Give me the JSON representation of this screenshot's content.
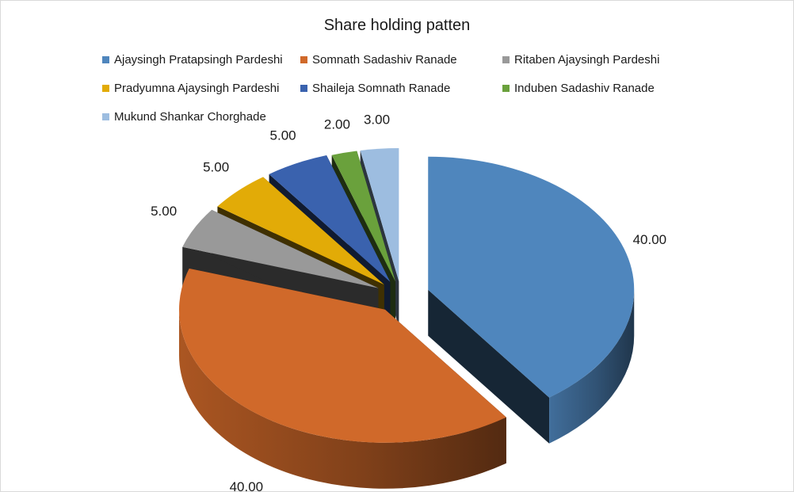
{
  "chart_data": {
    "type": "pie",
    "title": "Share holding patten",
    "legend_position": "top",
    "categories": [
      "Ajaysingh Pratapsingh Pardeshi",
      "Somnath Sadashiv Ranade",
      "Ritaben Ajaysingh Pardeshi",
      "Pradyumna Ajaysingh Pardeshi",
      "Shaileja Somnath Ranade",
      "Induben Sadashiv Ranade",
      "Mukund Shankar Chorghade"
    ],
    "values": [
      40,
      40,
      5,
      5,
      5,
      2,
      3
    ],
    "data_labels": [
      "40.00",
      "40.00",
      "5.00",
      "5.00",
      "5.00",
      "2.00",
      "3.00"
    ],
    "colors": [
      "#4f86bd",
      "#d0692a",
      "#999999",
      "#e2ab07",
      "#3a62ae",
      "#6aa13c",
      "#9dbde0"
    ],
    "exploded": true,
    "style": "3d"
  }
}
